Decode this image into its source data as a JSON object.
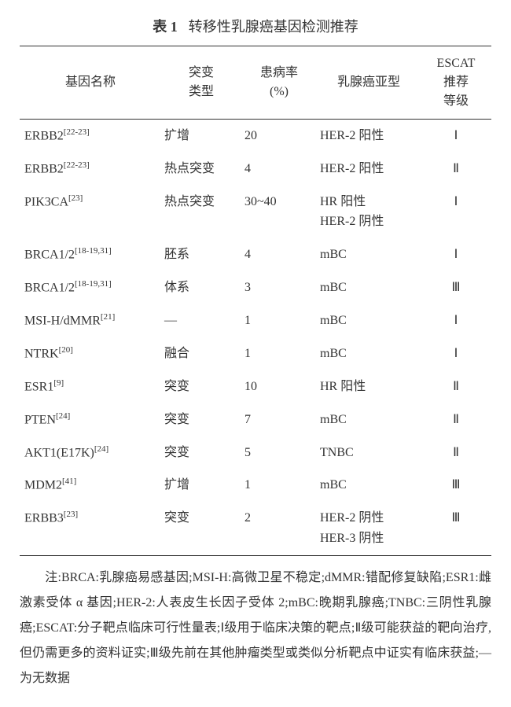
{
  "title_prefix": "表 1",
  "title_text": "转移性乳腺癌基因检测推荐",
  "columns": [
    "基因名称",
    "突变\n类型",
    "患病率\n(%)",
    "乳腺癌亚型",
    "ESCAT\n推荐\n等级"
  ],
  "rows": [
    {
      "gene": "ERBB2",
      "refs": "[22-23]",
      "mut": "扩增",
      "inc": "20",
      "sub": "HER-2 阳性",
      "escat": "Ⅰ"
    },
    {
      "gene": "ERBB2",
      "refs": "[22-23]",
      "mut": "热点突变",
      "inc": "4",
      "sub": "HER-2 阳性",
      "escat": "Ⅱ"
    },
    {
      "gene": "PIK3CA",
      "refs": "[23]",
      "mut": "热点突变",
      "inc": "30~40",
      "sub": "HR 阳性\nHER-2 阴性",
      "escat": "Ⅰ"
    },
    {
      "gene": "BRCA1/2",
      "refs": "[18-19,31]",
      "mut": "胚系",
      "inc": "4",
      "sub": "mBC",
      "escat": "Ⅰ"
    },
    {
      "gene": "BRCA1/2",
      "refs": "[18-19,31]",
      "mut": "体系",
      "inc": "3",
      "sub": "mBC",
      "escat": "Ⅲ"
    },
    {
      "gene": "MSI-H/dMMR",
      "refs": "[21]",
      "mut": "—",
      "inc": "1",
      "sub": "mBC",
      "escat": "Ⅰ"
    },
    {
      "gene": "NTRK",
      "refs": "[20]",
      "mut": "融合",
      "inc": "1",
      "sub": "mBC",
      "escat": "Ⅰ"
    },
    {
      "gene": "ESR1",
      "refs": "[9]",
      "mut": "突变",
      "inc": "10",
      "sub": "HR 阳性",
      "escat": "Ⅱ"
    },
    {
      "gene": "PTEN",
      "refs": "[24]",
      "mut": "突变",
      "inc": "7",
      "sub": "mBC",
      "escat": "Ⅱ"
    },
    {
      "gene": "AKT1(E17K)",
      "refs": "[24]",
      "mut": "突变",
      "inc": "5",
      "sub": "TNBC",
      "escat": "Ⅱ"
    },
    {
      "gene": "MDM2",
      "refs": "[41]",
      "mut": "扩增",
      "inc": "1",
      "sub": "mBC",
      "escat": "Ⅲ"
    },
    {
      "gene": "ERBB3",
      "refs": "[23]",
      "mut": "突变",
      "inc": "2",
      "sub": "HER-2 阴性\nHER-3 阴性",
      "escat": "Ⅲ"
    }
  ],
  "footnote": "注:BRCA:乳腺癌易感基因;MSI-H:高微卫星不稳定;dMMR:错配修复缺陷;ESR1:雌激素受体 α 基因;HER-2:人表皮生长因子受体 2;mBC:晚期乳腺癌;TNBC:三阴性乳腺癌;ESCAT:分子靶点临床可行性量表;Ⅰ级用于临床决策的靶点;Ⅱ级可能获益的靶向治疗,但仍需更多的资料证实;Ⅲ级先前在其他肿瘤类型或类似分析靶点中证实有临床获益;—为无数据",
  "colors": {
    "text": "#333333",
    "background": "#ffffff",
    "rule": "#333333"
  },
  "col_widths_pct": [
    30,
    17,
    16,
    22,
    15
  ],
  "font_sizes_pt": {
    "title": 18,
    "table": 16,
    "footnote": 16,
    "sup": 11
  }
}
